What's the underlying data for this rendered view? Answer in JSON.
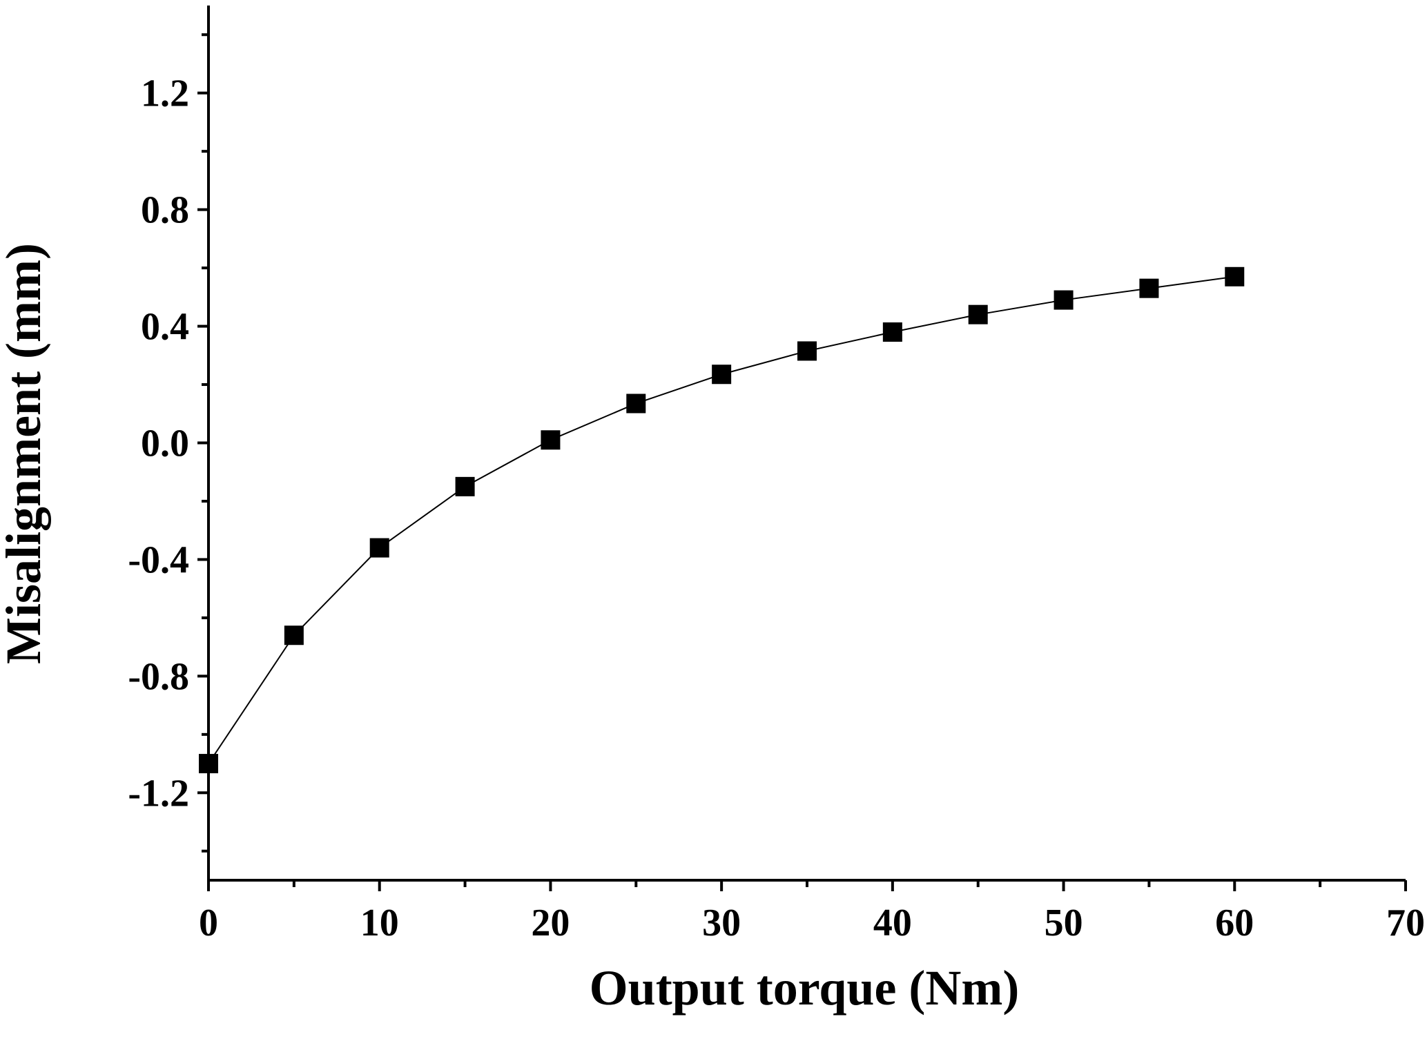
{
  "chart_data": {
    "type": "line",
    "title": "",
    "xlabel": "Output torque (Nm)",
    "ylabel": "Misalignment (mm)",
    "xlim": [
      0,
      70
    ],
    "ylim": [
      -1.5,
      1.5
    ],
    "x_ticks": [
      0,
      10,
      20,
      30,
      40,
      50,
      60,
      70
    ],
    "x_tick_labels": [
      "0",
      "10",
      "20",
      "30",
      "40",
      "50",
      "60",
      "70"
    ],
    "y_ticks": [
      -1.2,
      -0.8,
      -0.4,
      0.0,
      0.4,
      0.8,
      1.2
    ],
    "y_tick_labels": [
      "-1.2",
      "-0.8",
      "-0.4",
      "0.0",
      "0.4",
      "0.8",
      "1.2"
    ],
    "grid": false,
    "legend": "none",
    "marker": "square",
    "series": [
      {
        "x": [
          0,
          5,
          10,
          15,
          20,
          25,
          30,
          35,
          40,
          45,
          50,
          55,
          60
        ],
        "y": [
          -1.1,
          -0.66,
          -0.36,
          -0.15,
          0.01,
          0.135,
          0.235,
          0.315,
          0.38,
          0.44,
          0.49,
          0.53,
          0.57
        ]
      }
    ],
    "colors": {
      "line": "#000000",
      "marker": "#000000",
      "axis": "#000000"
    }
  }
}
